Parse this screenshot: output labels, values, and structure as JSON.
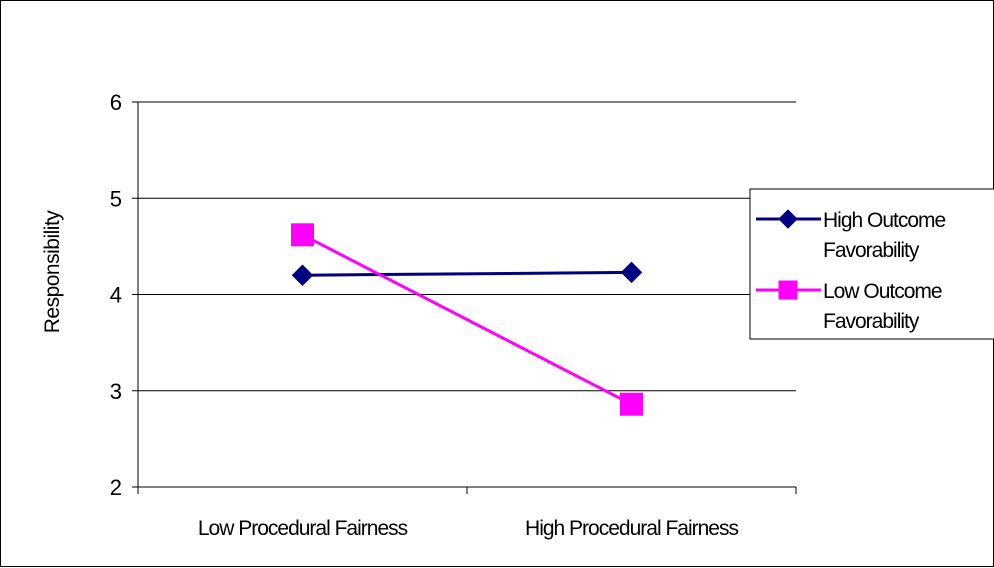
{
  "chart_data": {
    "type": "line",
    "title": "",
    "xlabel": "",
    "ylabel": "Responsibility",
    "categories": [
      "Low Procedural Fairness",
      "High Procedural Fairness"
    ],
    "ylim": [
      2,
      6
    ],
    "yticks": [
      2,
      3,
      4,
      5,
      6
    ],
    "grid": true,
    "legend_position": "right",
    "series": [
      {
        "name_lines": [
          "High Outcome",
          "Favorability"
        ],
        "values": [
          4.2,
          4.23
        ],
        "color": "#000080",
        "marker": "diamond"
      },
      {
        "name_lines": [
          "Low Outcome",
          "Favorability"
        ],
        "values": [
          4.62,
          2.86
        ],
        "color": "#ff00ff",
        "marker": "square"
      }
    ]
  }
}
